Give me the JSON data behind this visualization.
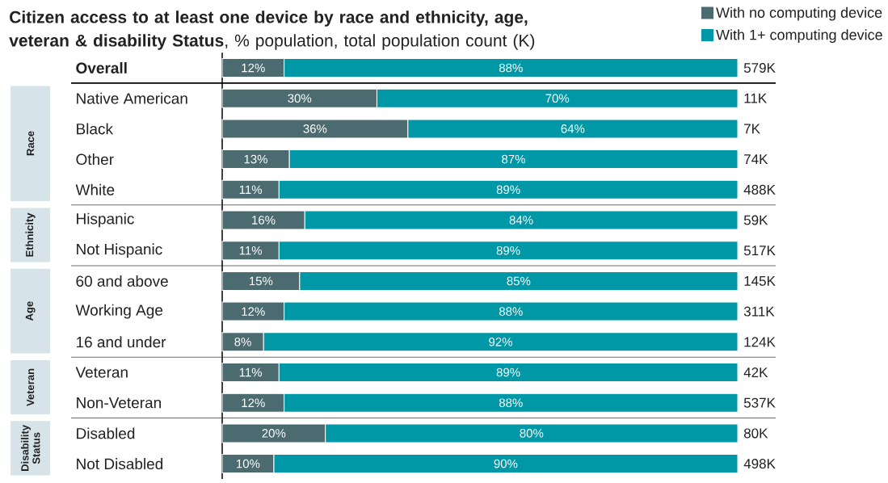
{
  "chart_data": [
    {
      "type": "bar",
      "orientation": "horizontal",
      "stacked": true,
      "title": "**Citizen access to at least one device by race and ethnicity, age, veteran & disability Status**, % population, total population count (K)",
      "categories": [
        "Overall"
      ],
      "series": [
        {
          "name": "With no computing device",
          "color": "#4b6b70",
          "values": [
            12
          ],
          "value_labels": [
            "12%"
          ]
        },
        {
          "name": "With 1+ computing device",
          "color": "#0097a6",
          "values": [
            88
          ],
          "value_labels": [
            "88%"
          ]
        }
      ],
      "annotations": [
        "579K"
      ],
      "tick_labels": "y",
      "legend": "top right"
    },
    {
      "type": "bar",
      "orientation": "horizontal",
      "stacked": true,
      "ylabel": "Race",
      "categories": [
        "Native American",
        "Black",
        "Other",
        "White"
      ],
      "series": [
        {
          "color": "#4b6b70",
          "values": [
            30,
            36,
            13,
            11
          ],
          "value_labels": [
            "30%",
            "36%",
            "13%",
            "11%"
          ]
        },
        {
          "color": "#0097a6",
          "values": [
            70,
            64,
            87,
            89
          ],
          "value_labels": [
            "70%",
            "64%",
            "87%",
            "89%"
          ]
        }
      ],
      "annotations": [
        "11K",
        "7K",
        "74K",
        "488K"
      ],
      "tick_labels": "y"
    },
    {
      "type": "bar",
      "orientation": "horizontal",
      "stacked": true,
      "ylabel": "Ethnicity",
      "categories": [
        "Hispanic",
        "Not Hispanic"
      ],
      "series": [
        {
          "color": "#4b6b70",
          "values": [
            16,
            11
          ],
          "value_labels": [
            "16%",
            "11%"
          ]
        },
        {
          "color": "#0097a6",
          "values": [
            84,
            89
          ],
          "value_labels": [
            "84%",
            "89%"
          ]
        }
      ],
      "annotations": [
        "59K",
        "517K"
      ],
      "tick_labels": "y"
    },
    {
      "type": "bar",
      "orientation": "horizontal",
      "stacked": true,
      "ylabel": "Age",
      "categories": [
        "60 and above",
        "Working Age",
        "16 and under"
      ],
      "series": [
        {
          "color": "#4b6b70",
          "values": [
            15,
            12,
            8
          ],
          "value_labels": [
            "15%",
            "12%",
            "8%"
          ]
        },
        {
          "color": "#0097a6",
          "values": [
            85,
            88,
            92
          ],
          "value_labels": [
            "85%",
            "88%",
            "92%"
          ]
        }
      ],
      "annotations": [
        "145K",
        "311K",
        "124K"
      ],
      "tick_labels": "y"
    },
    {
      "type": "bar",
      "orientation": "horizontal",
      "stacked": true,
      "ylabel": "Veteran",
      "categories": [
        "Veteran",
        "Non-Veteran"
      ],
      "series": [
        {
          "color": "#4b6b70",
          "values": [
            11,
            12
          ],
          "value_labels": [
            "11%",
            "12%"
          ]
        },
        {
          "color": "#0097a6",
          "values": [
            89,
            88
          ],
          "value_labels": [
            "89%",
            "88%"
          ]
        }
      ],
      "annotations": [
        "42K",
        "537K"
      ],
      "tick_labels": "y"
    },
    {
      "type": "bar",
      "orientation": "horizontal",
      "stacked": true,
      "ylabel": "Disability Status",
      "categories": [
        "Disabled",
        "Not Disabled"
      ],
      "series": [
        {
          "color": "#4b6b70",
          "values": [
            20,
            10
          ],
          "value_labels": [
            "20%",
            "10%"
          ]
        },
        {
          "color": "#0097a6",
          "values": [
            80,
            90
          ],
          "value_labels": [
            "80%",
            "90%"
          ]
        }
      ],
      "annotations": [
        "80K",
        "498K"
      ],
      "tick_labels": "y"
    }
  ]
}
